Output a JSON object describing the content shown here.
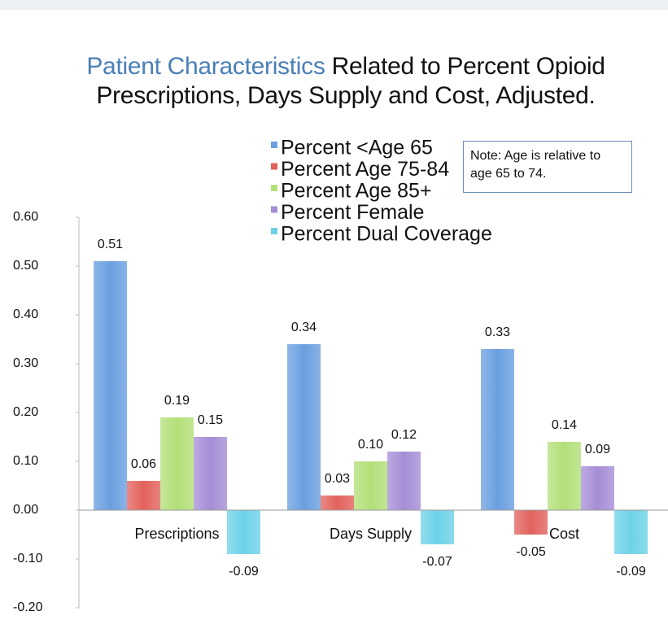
{
  "chart_data": {
    "type": "bar",
    "title_lead": "Patient Characteristics",
    "title": "Related to Percent Opioid Prescriptions, Days Supply and Cost, Adjusted.",
    "note": "Note: Age is relative to age 65 to 74.",
    "categories": [
      "Prescriptions",
      "Days Supply",
      "Cost"
    ],
    "series": [
      {
        "name": "Percent <Age  65",
        "color": "#6a9fe0",
        "values": [
          0.51,
          0.34,
          0.33
        ],
        "value_labels": [
          "0.51",
          "0.34",
          "0.33"
        ]
      },
      {
        "name": "Percent Age 75-84",
        "color": "#e2625c",
        "values": [
          0.06,
          0.03,
          -0.05
        ],
        "value_labels": [
          "0.06",
          "0.03",
          "-0.05"
        ]
      },
      {
        "name": "Percent Age 85+",
        "color": "#b3df78",
        "values": [
          0.19,
          0.1,
          0.14
        ],
        "value_labels": [
          "0.19",
          "0.10",
          "0.14"
        ]
      },
      {
        "name": "Percent Female",
        "color": "#a68ed6",
        "values": [
          0.15,
          0.12,
          0.09
        ],
        "value_labels": [
          "0.15",
          "0.12",
          "0.09"
        ]
      },
      {
        "name": "Percent Dual Coverage",
        "color": "#6dd2e8",
        "values": [
          -0.09,
          -0.07,
          -0.09
        ],
        "value_labels": [
          "-0.09",
          "-0.07",
          "-0.09"
        ]
      }
    ],
    "ylim": [
      -0.2,
      0.6
    ],
    "yticks": [
      {
        "value": -0.2,
        "label": "-0.20"
      },
      {
        "value": -0.1,
        "label": "-0.10"
      },
      {
        "value": 0,
        "label": "0.00"
      },
      {
        "value": 0.1,
        "label": "0.10"
      },
      {
        "value": 0.2,
        "label": "0.20"
      },
      {
        "value": 0.3,
        "label": "0.30"
      },
      {
        "value": 0.4,
        "label": "0.40"
      },
      {
        "value": 0.5,
        "label": "0.50"
      },
      {
        "value": 0.6,
        "label": "0.60"
      }
    ],
    "grid": false
  }
}
